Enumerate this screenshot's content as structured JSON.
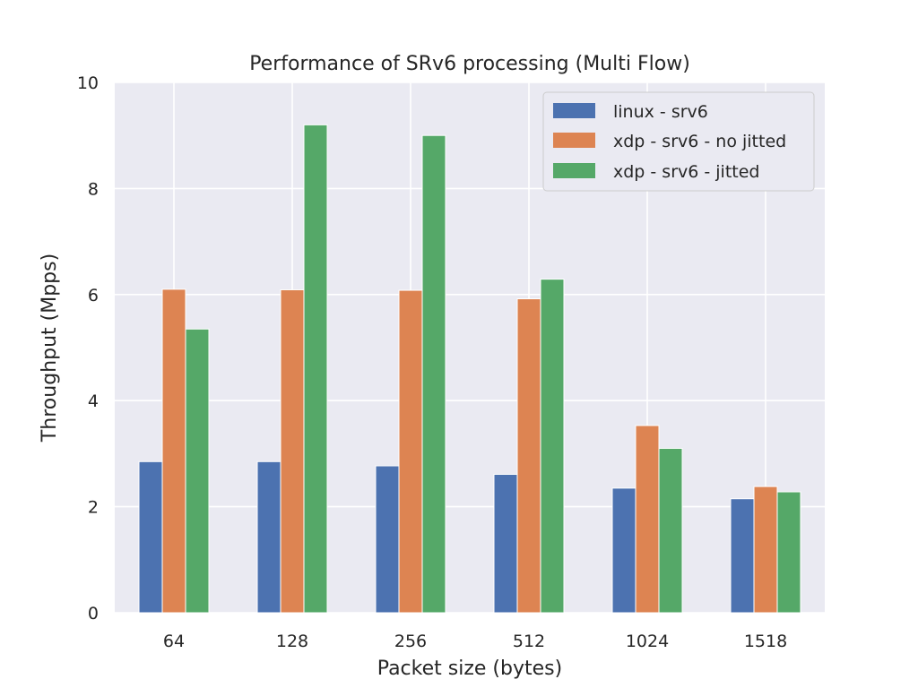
{
  "chart_data": {
    "type": "bar",
    "title": "Performance of SRv6 processing (Multi Flow)",
    "xlabel": "Packet size (bytes)",
    "ylabel": "Throughput (Mpps)",
    "categories": [
      "64",
      "128",
      "256",
      "512",
      "1024",
      "1518"
    ],
    "ylim": [
      0,
      10
    ],
    "yticks": [
      0,
      2,
      4,
      6,
      8,
      10
    ],
    "grid": true,
    "legend_position": "top-right",
    "series": [
      {
        "name": "linux - srv6",
        "color": "#4c72b0",
        "values": [
          2.85,
          2.85,
          2.77,
          2.61,
          2.35,
          2.15
        ]
      },
      {
        "name": "xdp - srv6 - no jitted",
        "color": "#dd8452",
        "values": [
          6.1,
          6.09,
          6.08,
          5.92,
          3.53,
          2.38
        ]
      },
      {
        "name": "xdp - srv6 - jitted",
        "color": "#55a868",
        "values": [
          5.35,
          9.2,
          9.0,
          6.29,
          3.1,
          2.28
        ]
      }
    ],
    "colors": {
      "plot_background": "#eaeaf2",
      "grid": "#ffffff"
    }
  }
}
